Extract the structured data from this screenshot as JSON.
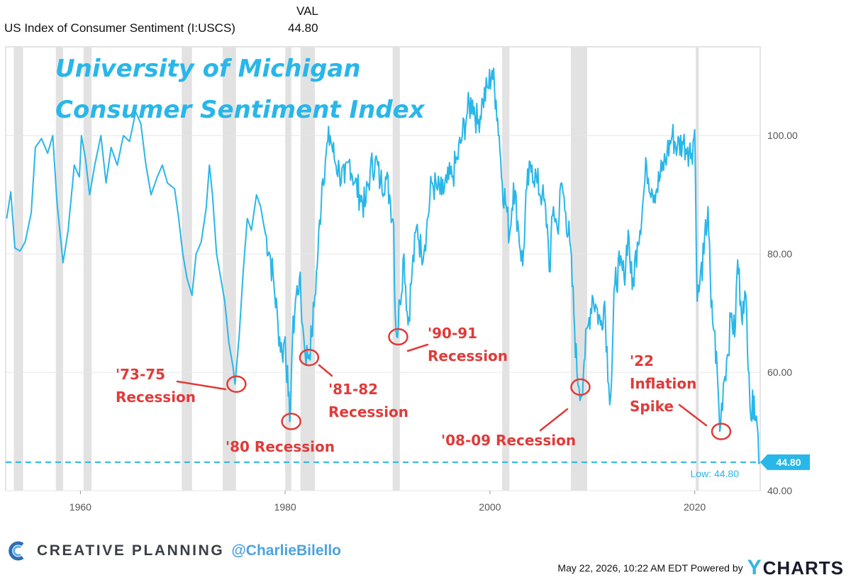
{
  "header": {
    "series_label": "US Index of Consumer Sentiment (I:USCS)",
    "value_title": "VAL",
    "value": "44.80"
  },
  "chart_data": {
    "type": "line",
    "title": "University of Michigan",
    "subtitle": "Consumer Sentiment Index",
    "xlim": [
      1952.7,
      2026.4
    ],
    "ylim": [
      40,
      115
    ],
    "x_ticks": [
      {
        "x": 1960,
        "label": "1960"
      },
      {
        "x": 1980,
        "label": "1980"
      },
      {
        "x": 2000,
        "label": "2000"
      },
      {
        "x": 2020,
        "label": "2020"
      }
    ],
    "y_ticks": [
      {
        "y": 40,
        "label": "40.00"
      },
      {
        "y": 60,
        "label": "60.00"
      },
      {
        "y": 80,
        "label": "80.00"
      },
      {
        "y": 100,
        "label": "100.00"
      }
    ],
    "grid": true,
    "line_color": "#29b6e8",
    "annotation_color": "#e03a3a",
    "recessions": [
      [
        1953.5,
        1954.4
      ],
      [
        1957.6,
        1958.3
      ],
      [
        1960.3,
        1961.1
      ],
      [
        1969.9,
        1970.9
      ],
      [
        1973.9,
        1975.2
      ],
      [
        1980.0,
        1980.6
      ],
      [
        1981.5,
        1982.9
      ],
      [
        1990.5,
        1991.2
      ],
      [
        2001.2,
        2001.9
      ],
      [
        2007.9,
        2009.5
      ],
      [
        2020.1,
        2020.4
      ]
    ],
    "series": [
      {
        "points": [
          [
            1952.8,
            86
          ],
          [
            1953.2,
            90.5
          ],
          [
            1953.6,
            81
          ],
          [
            1954.1,
            80.5
          ],
          [
            1954.6,
            82
          ],
          [
            1955.2,
            87
          ],
          [
            1955.6,
            98
          ],
          [
            1956.2,
            99.5
          ],
          [
            1956.8,
            97
          ],
          [
            1957.3,
            100
          ],
          [
            1957.7,
            89
          ],
          [
            1958.1,
            82
          ],
          [
            1958.3,
            78.5
          ],
          [
            1958.8,
            84
          ],
          [
            1959.4,
            95
          ],
          [
            1959.9,
            93
          ],
          [
            1960.1,
            100
          ],
          [
            1960.5,
            96
          ],
          [
            1960.9,
            90
          ],
          [
            1961.4,
            95
          ],
          [
            1962.0,
            100
          ],
          [
            1962.5,
            92
          ],
          [
            1963.0,
            98
          ],
          [
            1963.6,
            95
          ],
          [
            1964.2,
            100
          ],
          [
            1964.8,
            99
          ],
          [
            1965.4,
            104
          ],
          [
            1965.9,
            102
          ],
          [
            1966.4,
            95
          ],
          [
            1966.9,
            90
          ],
          [
            1967.5,
            93
          ],
          [
            1968.0,
            95
          ],
          [
            1968.5,
            92
          ],
          [
            1969.2,
            91
          ],
          [
            1969.6,
            86
          ],
          [
            1970.0,
            80
          ],
          [
            1970.4,
            76
          ],
          [
            1970.9,
            73
          ],
          [
            1971.3,
            80
          ],
          [
            1971.8,
            82
          ],
          [
            1972.3,
            88
          ],
          [
            1972.6,
            95
          ],
          [
            1972.9,
            90
          ],
          [
            1973.3,
            80
          ],
          [
            1973.7,
            76
          ],
          [
            1974.1,
            72
          ],
          [
            1974.5,
            65
          ],
          [
            1974.9,
            61
          ],
          [
            1975.1,
            58
          ],
          [
            1975.5,
            66
          ],
          [
            1975.9,
            77
          ],
          [
            1976.3,
            86
          ],
          [
            1976.7,
            84
          ],
          [
            1977.2,
            90
          ],
          [
            1977.6,
            88
          ],
          [
            1978.0,
            84
          ],
          [
            1978.5,
            80
          ],
          [
            1978.9,
            75
          ],
          [
            1979.3,
            68
          ],
          [
            1979.7,
            63
          ],
          [
            1980.0,
            66
          ],
          [
            1980.3,
            56
          ],
          [
            1980.45,
            51.7
          ],
          [
            1980.7,
            65
          ],
          [
            1981.0,
            72
          ],
          [
            1981.4,
            76
          ],
          [
            1981.7,
            68
          ],
          [
            1981.9,
            64
          ],
          [
            1982.2,
            62.5
          ],
          [
            1982.6,
            66
          ],
          [
            1982.9,
            73
          ],
          [
            1983.2,
            80
          ],
          [
            1983.6,
            92
          ],
          [
            1984.0,
            97
          ],
          [
            1984.4,
            100
          ],
          [
            1984.8,
            96
          ],
          [
            1985.3,
            94
          ],
          [
            1985.8,
            92
          ],
          [
            1986.3,
            96
          ],
          [
            1986.8,
            92
          ],
          [
            1987.3,
            90
          ],
          [
            1987.8,
            88
          ],
          [
            1988.3,
            94
          ],
          [
            1988.8,
            96
          ],
          [
            1989.3,
            92
          ],
          [
            1989.8,
            93
          ],
          [
            1990.2,
            90
          ],
          [
            1990.6,
            85
          ],
          [
            1990.75,
            70
          ],
          [
            1990.9,
            66
          ],
          [
            1991.2,
            72
          ],
          [
            1991.6,
            80
          ],
          [
            1992.0,
            68
          ],
          [
            1992.4,
            77
          ],
          [
            1992.9,
            85
          ],
          [
            1993.3,
            80
          ],
          [
            1993.8,
            84
          ],
          [
            1994.3,
            92
          ],
          [
            1994.8,
            91
          ],
          [
            1995.3,
            90
          ],
          [
            1995.8,
            92
          ],
          [
            1996.3,
            93
          ],
          [
            1996.8,
            96
          ],
          [
            1997.3,
            100
          ],
          [
            1997.8,
            104
          ],
          [
            1998.3,
            106
          ],
          [
            1998.8,
            102
          ],
          [
            1999.3,
            106
          ],
          [
            1999.8,
            108
          ],
          [
            2000.2,
            111
          ],
          [
            2000.6,
            106
          ],
          [
            2000.9,
            100
          ],
          [
            2001.2,
            92
          ],
          [
            2001.6,
            88
          ],
          [
            2001.9,
            83
          ],
          [
            2002.3,
            92
          ],
          [
            2002.8,
            84
          ],
          [
            2003.2,
            78
          ],
          [
            2003.6,
            91
          ],
          [
            2004.1,
            95
          ],
          [
            2004.6,
            92
          ],
          [
            2005.1,
            90
          ],
          [
            2005.6,
            85
          ],
          [
            2005.8,
            77
          ],
          [
            2006.2,
            88
          ],
          [
            2006.6,
            84
          ],
          [
            2007.0,
            92
          ],
          [
            2007.4,
            87
          ],
          [
            2007.8,
            82
          ],
          [
            2008.2,
            70
          ],
          [
            2008.5,
            60
          ],
          [
            2008.7,
            57.5
          ],
          [
            2008.9,
            56
          ],
          [
            2009.2,
            62
          ],
          [
            2009.6,
            68
          ],
          [
            2010.0,
            73
          ],
          [
            2010.4,
            71
          ],
          [
            2010.8,
            68
          ],
          [
            2011.2,
            72
          ],
          [
            2011.6,
            58
          ],
          [
            2011.8,
            56
          ],
          [
            2012.2,
            75
          ],
          [
            2012.7,
            78
          ],
          [
            2013.1,
            76
          ],
          [
            2013.5,
            84
          ],
          [
            2013.9,
            74
          ],
          [
            2014.4,
            82
          ],
          [
            2014.9,
            88
          ],
          [
            2015.3,
            95
          ],
          [
            2015.8,
            91
          ],
          [
            2016.3,
            91
          ],
          [
            2016.8,
            94
          ],
          [
            2017.3,
            97
          ],
          [
            2017.8,
            100
          ],
          [
            2018.3,
            98
          ],
          [
            2018.8,
            99
          ],
          [
            2019.3,
            98
          ],
          [
            2019.7,
            97
          ],
          [
            2020.0,
            101
          ],
          [
            2020.25,
            72
          ],
          [
            2020.5,
            75
          ],
          [
            2020.9,
            80
          ],
          [
            2021.3,
            88
          ],
          [
            2021.6,
            71
          ],
          [
            2021.9,
            67
          ],
          [
            2022.2,
            60
          ],
          [
            2022.45,
            50
          ],
          [
            2022.8,
            58
          ],
          [
            2023.2,
            63
          ],
          [
            2023.6,
            70
          ],
          [
            2023.9,
            66
          ],
          [
            2024.2,
            79
          ],
          [
            2024.5,
            72
          ],
          [
            2024.8,
            70
          ],
          [
            2025.0,
            73
          ],
          [
            2025.3,
            60
          ],
          [
            2025.5,
            52
          ],
          [
            2025.8,
            56
          ],
          [
            2026.1,
            51
          ],
          [
            2026.35,
            44.8
          ]
        ]
      }
    ],
    "reference_line": {
      "y": 44.8,
      "label": "Low: 44.80",
      "value_label": "44.80"
    },
    "annotations": [
      {
        "text": "'73-75 Recession",
        "lines": [
          "'73-75",
          "Recession"
        ],
        "x": 1975.1,
        "y": 58.0
      },
      {
        "text": "'80 Recession",
        "lines": [
          "'80 Recession"
        ],
        "x": 1980.45,
        "y": 51.7
      },
      {
        "text": "'81-82 Recession",
        "lines": [
          "'81-82",
          "Recession"
        ],
        "x": 1982.2,
        "y": 62.5
      },
      {
        "text": "'90-91 Recession",
        "lines": [
          "'90-91",
          "Recession"
        ],
        "x": 1990.9,
        "y": 66.0
      },
      {
        "text": "'08-09 Recession",
        "lines": [
          "'08-09 Recession"
        ],
        "x": 2008.7,
        "y": 57.5
      },
      {
        "text": "'22 Inflation Spike",
        "lines": [
          "'22",
          "Inflation",
          "Spike"
        ],
        "x": 2022.45,
        "y": 50.0
      }
    ]
  },
  "footer": {
    "brand": "CREATIVE PLANNING",
    "handle": "@CharlieBilello",
    "timestamp": "May 22, 2026, 10:22 AM EDT Powered by",
    "logo_text": "CHARTS",
    "logo_y": "Y"
  }
}
